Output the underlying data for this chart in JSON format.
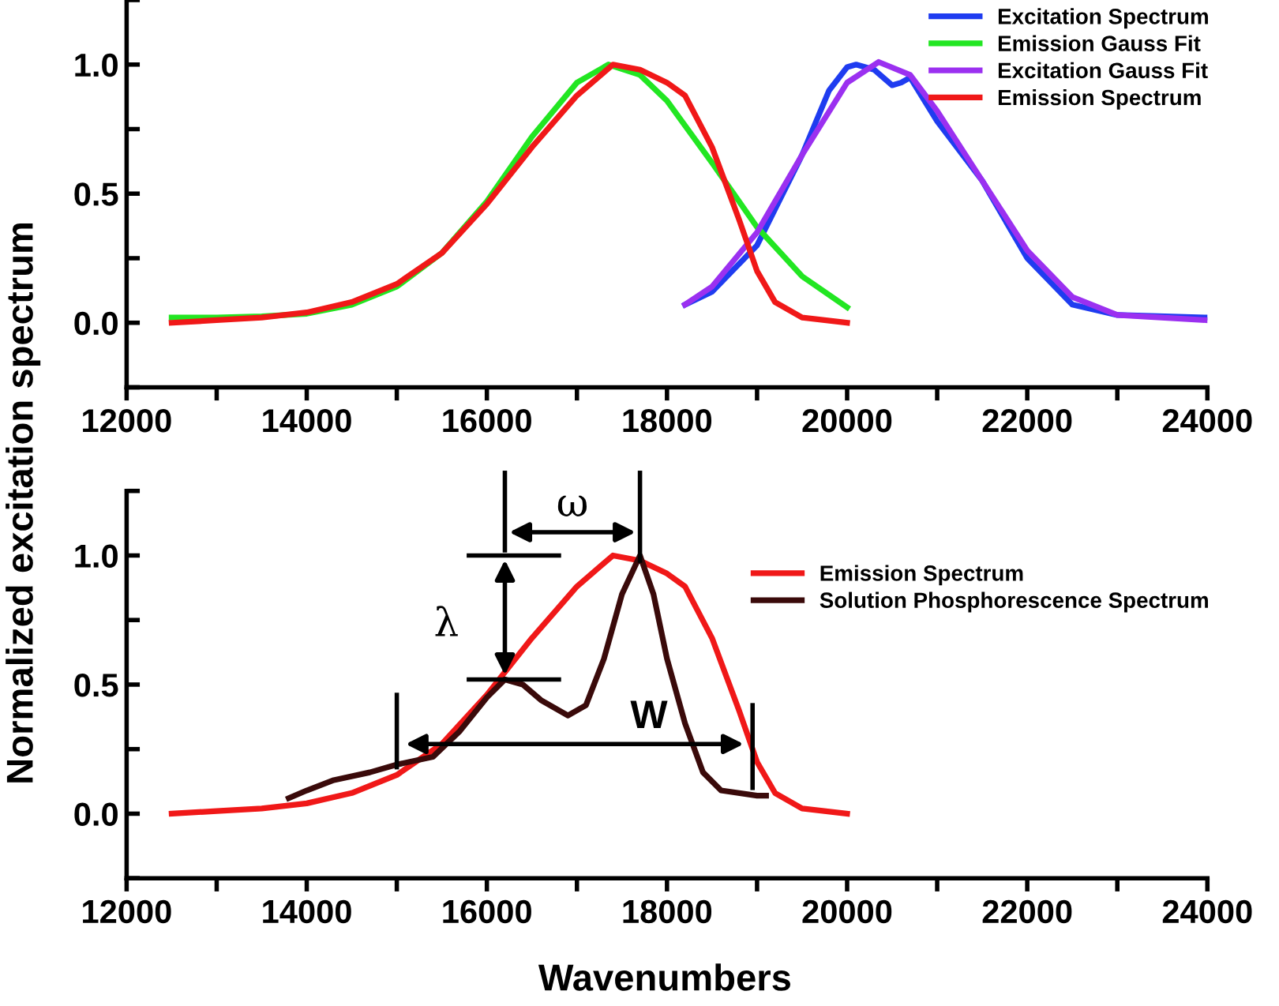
{
  "chart_data": [
    {
      "type": "line",
      "ylabel": "Normalized excitation spectrum",
      "xlim": [
        12000,
        24000
      ],
      "ylim": [
        -0.25,
        1.25
      ],
      "xticks": [
        12000,
        {
          "value": 13000,
          "label": null
        },
        14000,
        {
          "value": 15000,
          "label": null
        },
        16000,
        {
          "value": 17000,
          "label": null
        },
        18000,
        {
          "value": 19000,
          "label": null
        },
        20000,
        {
          "value": 21000,
          "label": null
        },
        22000,
        {
          "value": 23000,
          "label": null
        },
        24000
      ],
      "yticks": [
        {
          "value": -0.25,
          "label": null
        },
        {
          "value": 0,
          "label": "0.0"
        },
        {
          "value": 0.25,
          "label": null
        },
        0.5,
        {
          "value": 0.75,
          "label": null
        },
        {
          "value": 1,
          "label": "1.0"
        },
        {
          "value": 1.25,
          "label": null
        }
      ],
      "grid": false,
      "legend": "top right",
      "series": [
        {
          "name": "Excitation Spectrum",
          "color": "#1f3cf0",
          "x": [
            18200,
            18500,
            19000,
            19500,
            19800,
            20000,
            20100,
            20300,
            20500,
            20600,
            20700,
            21000,
            21500,
            22000,
            22500,
            23000,
            24000
          ],
          "values": [
            0.07,
            0.12,
            0.3,
            0.65,
            0.9,
            0.99,
            1.0,
            0.98,
            0.92,
            0.93,
            0.95,
            0.78,
            0.55,
            0.25,
            0.07,
            0.03,
            0.02
          ]
        },
        {
          "name": "Emission Gauss Fit",
          "color": "#22e622",
          "x": [
            12500,
            13000,
            13500,
            14000,
            14500,
            15000,
            15500,
            16000,
            16500,
            17000,
            17350,
            17700,
            18000,
            18500,
            19000,
            19500,
            20000
          ],
          "values": [
            0.02,
            0.02,
            0.025,
            0.035,
            0.07,
            0.14,
            0.27,
            0.47,
            0.72,
            0.93,
            1.0,
            0.96,
            0.86,
            0.62,
            0.37,
            0.18,
            0.06
          ]
        },
        {
          "name": "Excitation Gauss Fit",
          "color": "#9b30f0",
          "x": [
            18200,
            18500,
            19000,
            19500,
            20000,
            20350,
            20700,
            21000,
            21500,
            22000,
            22500,
            23000,
            24000
          ],
          "values": [
            0.07,
            0.14,
            0.35,
            0.65,
            0.93,
            1.01,
            0.96,
            0.82,
            0.55,
            0.28,
            0.1,
            0.03,
            0.01
          ]
        },
        {
          "name": "Emission Spectrum",
          "color": "#f01818",
          "x": [
            12500,
            13000,
            13500,
            14000,
            14500,
            15000,
            15500,
            16000,
            16500,
            17000,
            17400,
            17700,
            18000,
            18200,
            18500,
            18800,
            19000,
            19200,
            19500,
            20000
          ],
          "values": [
            0.0,
            0.01,
            0.02,
            0.04,
            0.08,
            0.15,
            0.27,
            0.46,
            0.68,
            0.88,
            1.0,
            0.98,
            0.93,
            0.88,
            0.68,
            0.4,
            0.2,
            0.08,
            0.02,
            0.0
          ]
        }
      ]
    },
    {
      "type": "line",
      "xlabel": "Wavenumbers",
      "xlim": [
        12000,
        24000
      ],
      "ylim": [
        -0.25,
        1.25
      ],
      "xticks": [
        12000,
        {
          "value": 13000,
          "label": null
        },
        14000,
        {
          "value": 15000,
          "label": null
        },
        16000,
        {
          "value": 17000,
          "label": null
        },
        18000,
        {
          "value": 19000,
          "label": null
        },
        20000,
        {
          "value": 21000,
          "label": null
        },
        22000,
        {
          "value": 23000,
          "label": null
        },
        24000
      ],
      "yticks": [
        {
          "value": -0.25,
          "label": null
        },
        {
          "value": 0,
          "label": "0.0"
        },
        {
          "value": 0.25,
          "label": null
        },
        0.5,
        {
          "value": 0.75,
          "label": null
        },
        {
          "value": 1,
          "label": "1.0"
        },
        {
          "value": 1.25,
          "label": null
        }
      ],
      "grid": false,
      "legend": "top right",
      "annotations": [
        "ω",
        "λ",
        "W"
      ],
      "series": [
        {
          "name": "Emission Spectrum",
          "color": "#f01818",
          "x": [
            12500,
            13000,
            13500,
            14000,
            14500,
            15000,
            15500,
            16000,
            16500,
            17000,
            17400,
            17700,
            18000,
            18200,
            18500,
            18800,
            19000,
            19200,
            19500,
            20000
          ],
          "values": [
            0.0,
            0.01,
            0.02,
            0.04,
            0.08,
            0.15,
            0.27,
            0.46,
            0.68,
            0.88,
            1.0,
            0.98,
            0.93,
            0.88,
            0.68,
            0.4,
            0.2,
            0.08,
            0.02,
            0.0
          ]
        },
        {
          "name": "Solution Phosphorescence Spectrum",
          "color": "#3a0a0a",
          "x": [
            13800,
            14000,
            14300,
            14700,
            15000,
            15400,
            15700,
            16000,
            16200,
            16400,
            16600,
            16900,
            17100,
            17300,
            17500,
            17700,
            17850,
            18000,
            18200,
            18400,
            18600,
            19000,
            19100
          ],
          "values": [
            0.06,
            0.09,
            0.13,
            0.16,
            0.19,
            0.22,
            0.32,
            0.45,
            0.52,
            0.5,
            0.44,
            0.38,
            0.42,
            0.6,
            0.85,
            1.0,
            0.85,
            0.6,
            0.35,
            0.16,
            0.09,
            0.07,
            0.07
          ]
        }
      ]
    }
  ]
}
